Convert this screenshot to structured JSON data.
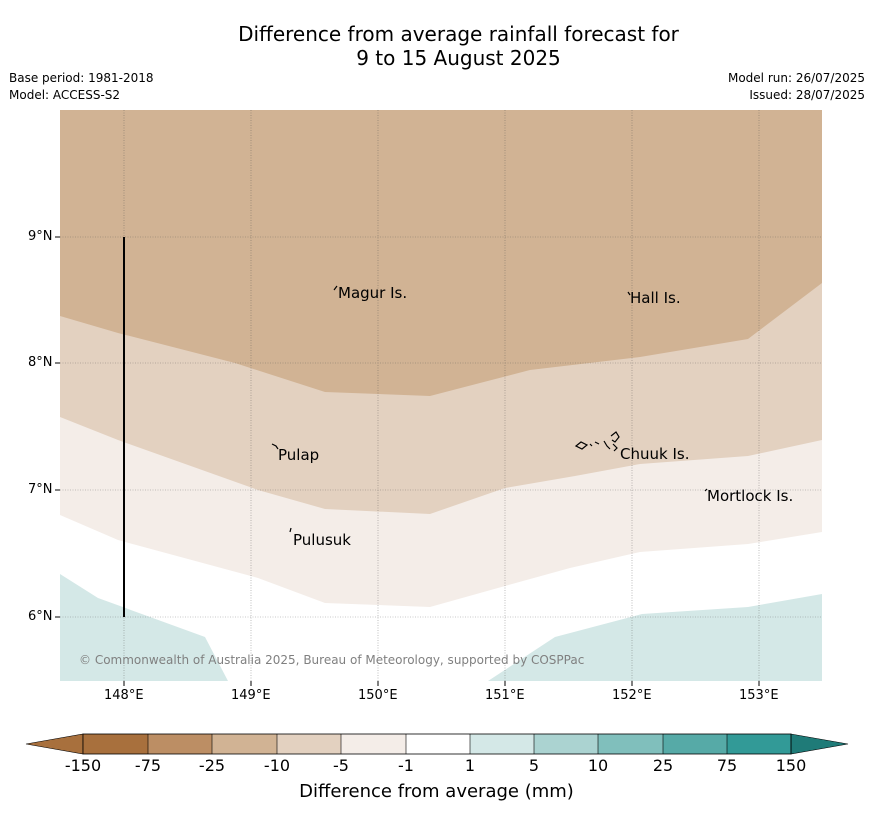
{
  "title": {
    "line1": "Difference from average rainfall forecast for",
    "line2": "9 to 15 August 2025"
  },
  "meta": {
    "base_period": "Base period: 1981-2018",
    "model": "Model: ACCESS-S2",
    "model_run": "Model run: 26/07/2025",
    "issued": "Issued: 28/07/2025"
  },
  "map": {
    "lat_labels": [
      "9°N",
      "8°N",
      "7°N",
      "6°N"
    ],
    "lon_labels": [
      "148°E",
      "149°E",
      "150°E",
      "151°E",
      "152°E",
      "153°E"
    ],
    "places": {
      "magur": "Magur Is.",
      "hall": "Hall Is.",
      "pulap": "Pulap",
      "chuuk": "Chuuk Is.",
      "mortlock": "Mortlock Is.",
      "pulusuk": "Pulusuk"
    },
    "copyright": "© Commonwealth of Australia 2025, Bureau of Meteorology, supported by COSPPac",
    "colors": {
      "lt_-25": "#d1b394",
      "-10_-5": "#e3d1c0",
      "-5_-1": "#f4ede8",
      "-1_1": "#ffffff",
      "1_5": "#d4e8e7"
    }
  },
  "colorbar": {
    "ticks": [
      "-150",
      "-75",
      "-25",
      "-10",
      "-5",
      "-1",
      "1",
      "5",
      "10",
      "25",
      "75",
      "150"
    ],
    "colors": [
      "#a8703d",
      "#bc8e64",
      "#d1b394",
      "#e3d1c0",
      "#f4ede8",
      "#ffffff",
      "#d4e8e7",
      "#abd3d1",
      "#80bfbc",
      "#56aaa7",
      "#329a97",
      "#1f7b78",
      "#7e4f27"
    ],
    "label": "Difference from average (mm)"
  }
}
